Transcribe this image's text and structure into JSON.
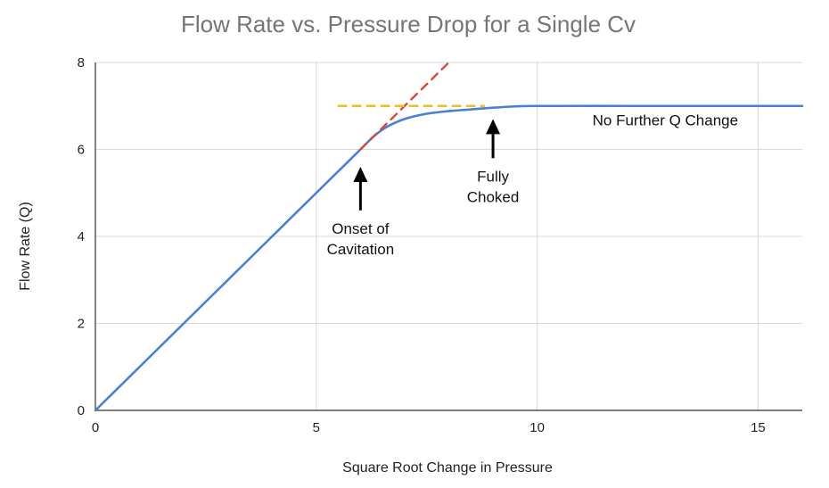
{
  "chart_data": {
    "type": "line",
    "title": "Flow Rate vs. Pressure Drop for a Single Cv",
    "xlabel": "Square Root Change in Pressure",
    "ylabel": "Flow Rate (Q)",
    "xlim": [
      0,
      16
    ],
    "ylim": [
      0,
      8
    ],
    "x_ticks": [
      "0",
      "5",
      "10",
      "15"
    ],
    "y_ticks": [
      "0",
      "2",
      "4",
      "6",
      "8"
    ],
    "grid": true,
    "colors": {
      "flow_curve": "#4a7fd4",
      "extrapolation": "#d64a3c",
      "max_flow": "#f2bb2a",
      "gridline": "#d9d9d9",
      "axis": "#333333",
      "title": "#757575"
    },
    "series": [
      {
        "id": "flow_curve",
        "x": [
          0,
          1,
          2,
          3,
          4,
          5,
          5.5,
          6,
          6.3,
          6.6,
          7,
          7.5,
          8,
          8.5,
          9,
          9.5,
          10,
          12,
          14,
          16
        ],
        "y": [
          0,
          1,
          2,
          3,
          4,
          5,
          5.5,
          6,
          6.3,
          6.52,
          6.7,
          6.82,
          6.88,
          6.92,
          6.96,
          6.99,
          7,
          7,
          7,
          7
        ]
      },
      {
        "id": "extrapolation",
        "style": "dashed",
        "x": [
          6,
          8
        ],
        "y": [
          6,
          8
        ]
      },
      {
        "id": "max_flow",
        "style": "dashed",
        "x": [
          5.5,
          8.8
        ],
        "y": [
          7,
          7
        ]
      }
    ],
    "annotations": [
      {
        "lines": [
          "Onset of",
          "Cavitation"
        ],
        "arrow_tip": [
          6,
          5.6
        ],
        "arrow_tail": [
          6,
          4.6
        ]
      },
      {
        "lines": [
          "Fully",
          "Choked"
        ],
        "arrow_tip": [
          9,
          6.7
        ],
        "arrow_tail": [
          9,
          5.8
        ]
      },
      {
        "lines": [
          "No Further Q Change"
        ],
        "at": [
          12.9,
          6.55
        ]
      }
    ]
  }
}
